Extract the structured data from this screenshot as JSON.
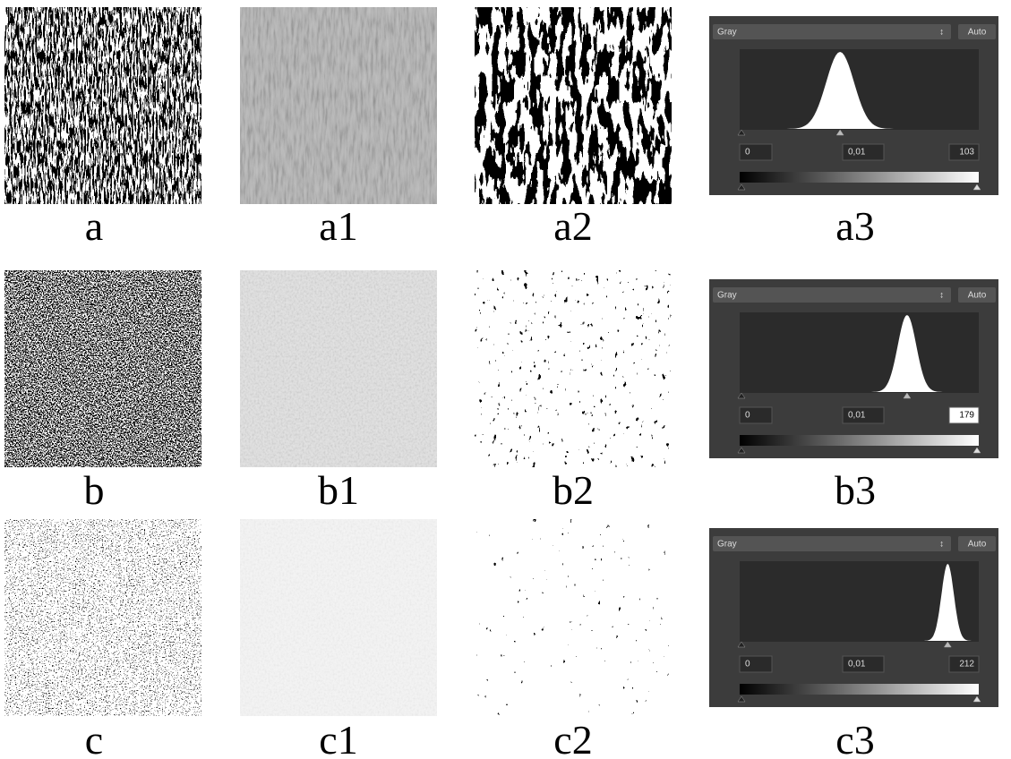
{
  "rows": [
    {
      "labels": [
        "a",
        "a1",
        "a2",
        "a3"
      ],
      "panel": {
        "channel": "Gray",
        "button": "Auto",
        "input_black": "0",
        "input_gamma": "0,01",
        "input_white": "103"
      }
    },
    {
      "labels": [
        "b",
        "b1",
        "b2",
        "b3"
      ],
      "panel": {
        "channel": "Gray",
        "button": "Auto",
        "input_black": "0",
        "input_gamma": "0,01",
        "input_white": "179"
      }
    },
    {
      "labels": [
        "c",
        "c1",
        "c2",
        "c3"
      ],
      "panel": {
        "channel": "Gray",
        "button": "Auto",
        "input_black": "0",
        "input_gamma": "0,01",
        "input_white": "212"
      }
    }
  ]
}
